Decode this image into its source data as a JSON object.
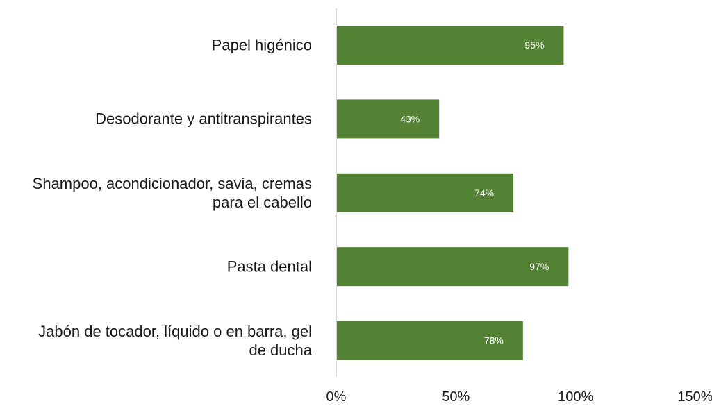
{
  "chart_data": {
    "type": "bar",
    "orientation": "horizontal",
    "categories": [
      "Papel higénico",
      "Desodorante y antitranspirantes",
      "Shampoo, acondicionador, savia, cremas para el cabello",
      "Pasta dental",
      "Jabón de tocador, líquido o en barra, gel de ducha"
    ],
    "category_lines": [
      [
        "Papel higénico"
      ],
      [
        "Desodorante y antitranspirantes"
      ],
      [
        "Shampoo, acondicionador, savia, cremas",
        "para el cabello"
      ],
      [
        "Pasta dental"
      ],
      [
        "Jabón de tocador, líquido o en barra, gel",
        "de ducha"
      ]
    ],
    "values": [
      95,
      43,
      74,
      97,
      78
    ],
    "data_labels": [
      "95%",
      "43%",
      "74%",
      "97%",
      "78%"
    ],
    "xlim": [
      0,
      150
    ],
    "xticks": [
      0,
      50,
      100,
      150
    ],
    "xtick_labels": [
      "0%",
      "50%",
      "100%",
      "150%"
    ],
    "title": "",
    "xlabel": "",
    "ylabel": "",
    "grid": false,
    "legend": "none",
    "colors": {
      "bar": "#548235",
      "axis": "#d9d9d9",
      "label_text": "#ffffff",
      "tick_text": "#1a1a1a"
    }
  }
}
